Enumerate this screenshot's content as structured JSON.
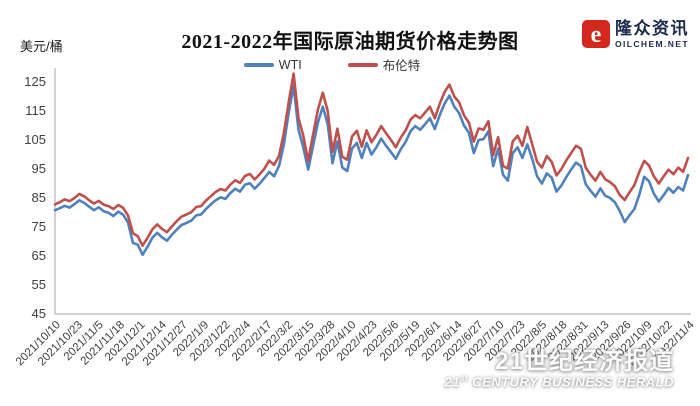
{
  "chart_data": {
    "type": "line",
    "title": "2021-2022年国际原油期货价格走势图",
    "y_unit": "美元/桶",
    "ylim": [
      45,
      125
    ],
    "y_ticks": [
      125,
      115,
      105,
      95,
      85,
      75,
      65,
      55,
      45
    ],
    "grid": false,
    "legend_position": "top-center",
    "axis_color": "#a6a6a6",
    "tick_text_color": "#404040",
    "x_start": "2021/10/10",
    "x_end": "2022/11/4",
    "x_step_days": 3,
    "x_tick_labels": [
      "2021/10/10",
      "2021/10/23",
      "2021/11/5",
      "2021/11/18",
      "2021/12/1",
      "2021/12/14",
      "2021/12/27",
      "2022/1/9",
      "2022/1/22",
      "2022/2/4",
      "2022/2/17",
      "2022/3/2",
      "2022/3/15",
      "2022/3/28",
      "2022/4/10",
      "2022/4/23",
      "2022/5/6",
      "2022/5/19",
      "2022/6/1",
      "2022/6/14",
      "2022/6/27",
      "2022/7/10",
      "2022/7/23",
      "2022/8/5",
      "2022/8/18",
      "2022/8/31",
      "2022/9/13",
      "2022/9/26",
      "2022/10/9",
      "2022/10/22",
      "2022/11/4"
    ],
    "series": [
      {
        "name": "WTI",
        "color": "#4f81bd",
        "values": [
          80.8,
          81.5,
          82.3,
          81.7,
          82.9,
          84.2,
          83.3,
          82.0,
          80.8,
          81.8,
          80.4,
          79.9,
          78.8,
          80.3,
          79.2,
          76.6,
          69.5,
          68.9,
          65.4,
          68.2,
          71.3,
          73.0,
          71.4,
          70.3,
          72.3,
          74.1,
          75.7,
          76.4,
          77.2,
          79.0,
          79.3,
          81.2,
          82.8,
          84.2,
          85.2,
          84.7,
          86.7,
          88.2,
          87.2,
          89.6,
          90.1,
          88.2,
          89.9,
          91.9,
          94.0,
          92.5,
          96.0,
          103.5,
          114.5,
          123.7,
          108.5,
          102.5,
          94.8,
          103.0,
          111.0,
          116.5,
          110.5,
          97.0,
          104.5,
          95.5,
          94.3,
          102.0,
          104.0,
          98.8,
          104.0,
          100.0,
          102.5,
          105.5,
          103.0,
          100.8,
          98.5,
          101.8,
          104.3,
          108.0,
          109.8,
          108.5,
          110.5,
          112.5,
          108.8,
          113.5,
          117.5,
          120.3,
          116.5,
          114.3,
          110.0,
          107.5,
          100.5,
          105.0,
          105.3,
          108.0,
          96.0,
          102.0,
          93.0,
          91.0,
          100.5,
          102.5,
          98.8,
          103.5,
          98.5,
          92.5,
          90.0,
          93.5,
          92.0,
          87.2,
          89.3,
          92.2,
          94.8,
          97.2,
          96.0,
          89.8,
          87.5,
          85.5,
          88.3,
          85.8,
          85.0,
          83.5,
          80.5,
          76.7,
          79.1,
          81.2,
          86.1,
          92.3,
          90.8,
          86.5,
          83.8,
          86.0,
          88.5,
          86.8,
          88.8,
          87.6,
          92.9
        ]
      },
      {
        "name": "布伦特",
        "color": "#c0504d",
        "values": [
          82.8,
          83.6,
          84.5,
          83.9,
          85.0,
          86.4,
          85.6,
          84.2,
          83.1,
          84.0,
          82.7,
          82.2,
          81.2,
          82.6,
          81.6,
          79.0,
          72.9,
          71.8,
          68.6,
          71.2,
          74.2,
          75.9,
          74.3,
          73.2,
          75.2,
          77.0,
          78.6,
          79.3,
          80.1,
          81.9,
          82.2,
          84.1,
          85.6,
          87.1,
          88.1,
          87.6,
          89.6,
          91.1,
          90.2,
          92.6,
          93.3,
          91.4,
          93.1,
          95.1,
          97.9,
          96.4,
          99.5,
          107.5,
          118.0,
          127.9,
          112.5,
          106.5,
          97.8,
          106.9,
          115.5,
          121.3,
          115.0,
          100.9,
          108.9,
          99.2,
          98.2,
          106.2,
          108.2,
          102.7,
          108.3,
          104.2,
          106.8,
          109.8,
          107.3,
          105.0,
          102.5,
          105.8,
          108.3,
          112.0,
          113.6,
          112.5,
          114.5,
          116.5,
          112.5,
          117.5,
          121.5,
          124.1,
          120.0,
          118.0,
          113.5,
          111.0,
          104.5,
          109.0,
          108.5,
          111.5,
          99.8,
          106.0,
          96.0,
          95.2,
          104.5,
          106.5,
          103.0,
          109.5,
          103.5,
          97.5,
          95.5,
          99.5,
          97.5,
          92.8,
          95.0,
          98.0,
          100.5,
          103.0,
          102.0,
          95.5,
          93.0,
          91.0,
          94.0,
          91.5,
          90.5,
          89.0,
          86.0,
          84.3,
          87.0,
          89.5,
          94.0,
          97.8,
          96.2,
          92.5,
          90.0,
          92.5,
          94.8,
          93.2,
          95.5,
          94.0,
          98.8
        ]
      }
    ]
  },
  "logo": {
    "name": "隆众资讯",
    "domain": "OILCHEM.NET",
    "icon_color": "#d3281e",
    "text_color": "#1c2a4d"
  },
  "watermark": {
    "cn": "21世纪经济报道",
    "en_num": "21",
    "en_sup": "st",
    "en_rest": " CENTURY BUSINESS HERALD"
  }
}
